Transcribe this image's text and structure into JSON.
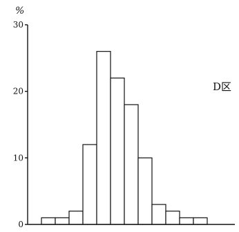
{
  "chart_data": {
    "type": "bar",
    "ylabel": "%",
    "panel_label": "D区",
    "ylim": [
      0,
      30
    ],
    "yticks": [
      0,
      10,
      20,
      30
    ],
    "values": [
      1,
      1,
      2,
      12,
      26,
      22,
      18,
      10,
      3,
      2,
      1,
      1
    ],
    "grid": false,
    "legend": "none"
  }
}
